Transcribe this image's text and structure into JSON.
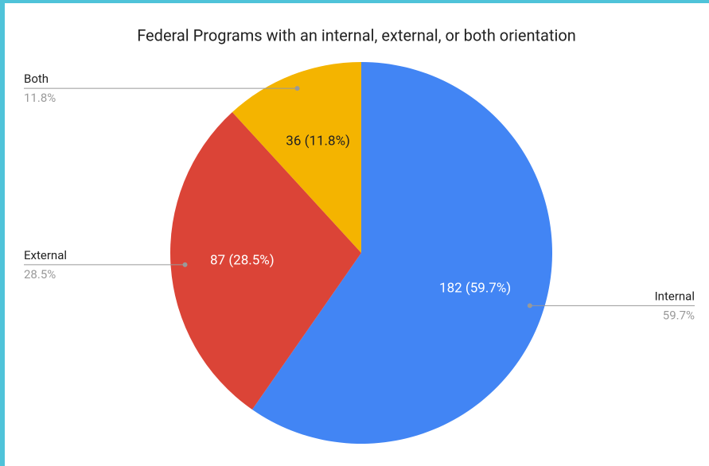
{
  "chart_data": {
    "type": "pie",
    "title": "Federal Programs with an internal, external, or both orientation",
    "categories": [
      "Internal",
      "External",
      "Both"
    ],
    "values": [
      182,
      87,
      36
    ],
    "value_labels": [
      "182 (59.7%)",
      "87 (28.5%)",
      "36 (11.8%)"
    ],
    "percent_labels": [
      "59.7%",
      "28.5%",
      "11.8%"
    ],
    "colors": [
      "#4285f4",
      "#db4437",
      "#f4b400"
    ]
  }
}
